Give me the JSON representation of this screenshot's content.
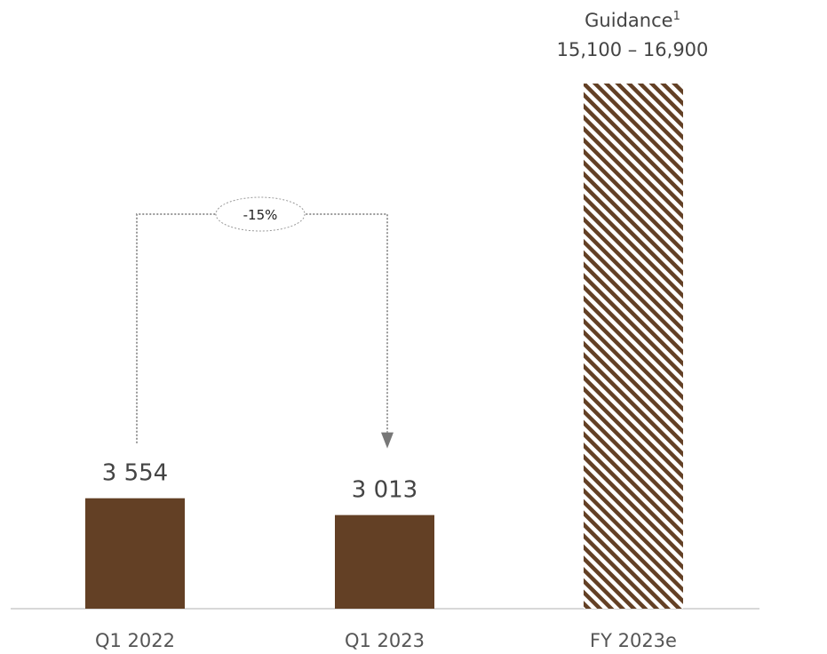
{
  "chart_data": {
    "type": "bar",
    "categories": [
      "Q1 2022",
      "Q1 2023",
      "FY 2023e"
    ],
    "values": [
      3554,
      3013,
      16900
    ],
    "value_labels": [
      "3 554",
      "3 013",
      ""
    ],
    "value_display": {
      "Q1 2022": "3 554",
      "Q1 2023": "3 013"
    },
    "guidance": {
      "label": "Guidance",
      "footnote": "1",
      "range_text": "15,100 – 16,900",
      "low": 15100,
      "high": 16900,
      "category": "FY 2023e",
      "style": "hatched"
    },
    "change": {
      "from": "Q1 2022",
      "to": "Q1 2023",
      "label": "-15%"
    },
    "ylim": [
      0,
      16900
    ],
    "grid": false,
    "legend": "none",
    "title": "",
    "xlabel": "",
    "ylabel": "",
    "colors": {
      "bar": "#634025",
      "hatch_dark": "#634025",
      "hatch_light": "#ffffff",
      "axis": "#cccccc",
      "connector": "#999999",
      "arrow": "#777777"
    }
  }
}
